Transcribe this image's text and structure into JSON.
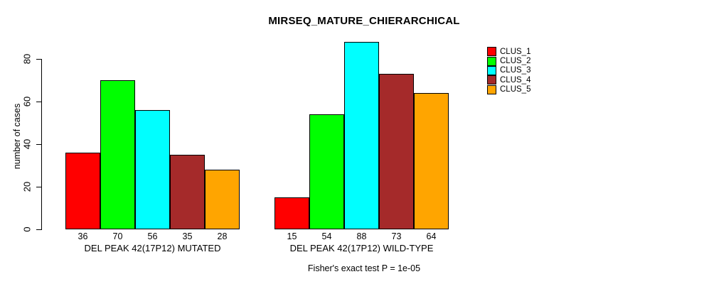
{
  "chart_data": {
    "type": "bar",
    "title": "MIRSEQ_MATURE_CHIERARCHICAL",
    "ylabel": "number of cases",
    "xlabel": "",
    "annotation": "Fisher's exact test P = 1e-05",
    "categories": [
      "DEL PEAK 42(17P12) MUTATED",
      "DEL PEAK 42(17P12) WILD-TYPE"
    ],
    "series": [
      {
        "name": "CLUS_1",
        "color": "#FF0000",
        "values": [
          36,
          15
        ]
      },
      {
        "name": "CLUS_2",
        "color": "#00FF00",
        "values": [
          70,
          54
        ]
      },
      {
        "name": "CLUS_3",
        "color": "#00FFFF",
        "values": [
          56,
          88
        ]
      },
      {
        "name": "CLUS_4",
        "color": "#A52A2A",
        "values": [
          35,
          73
        ]
      },
      {
        "name": "CLUS_5",
        "color": "#FFA500",
        "values": [
          28,
          64
        ]
      }
    ],
    "yticks": [
      0,
      20,
      40,
      60,
      80
    ],
    "ylim": [
      0,
      88
    ],
    "bar_value_labels": true,
    "legend_position": "right",
    "grid": false
  }
}
